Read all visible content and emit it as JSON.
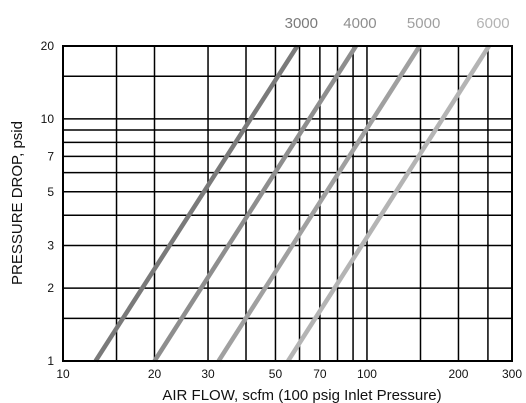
{
  "chart_data": {
    "type": "line",
    "title": "",
    "xlabel": "AIR FLOW, scfm (100 psig Inlet Pressure)",
    "ylabel": "PRESSURE DROP, psid",
    "xscale": "log",
    "yscale": "log",
    "xlim": [
      10,
      300
    ],
    "ylim": [
      1,
      20
    ],
    "grid": true,
    "x_tick_labels": [
      10,
      20,
      30,
      50,
      70,
      100,
      200,
      300
    ],
    "y_tick_labels": [
      1,
      2,
      3,
      5,
      7,
      10,
      20
    ],
    "x_grid": [
      15,
      20,
      30,
      40,
      50,
      60,
      70,
      80,
      90,
      100,
      150,
      200,
      250
    ],
    "y_grid": [
      1.5,
      2,
      3,
      4,
      5,
      6,
      7,
      8,
      9,
      10,
      15
    ],
    "series": [
      {
        "name": "3000",
        "color": "#7a7a7a",
        "x": [
          12.8,
          59
        ],
        "y": [
          1,
          20
        ]
      },
      {
        "name": "4000",
        "color": "#8e8e8e",
        "x": [
          20,
          92
        ],
        "y": [
          1,
          20
        ]
      },
      {
        "name": "5000",
        "color": "#a0a0a0",
        "x": [
          32.5,
          149
        ],
        "y": [
          1,
          20
        ]
      },
      {
        "name": "6000",
        "color": "#b4b4b4",
        "x": [
          55,
          252
        ],
        "y": [
          1,
          20
        ]
      }
    ]
  }
}
